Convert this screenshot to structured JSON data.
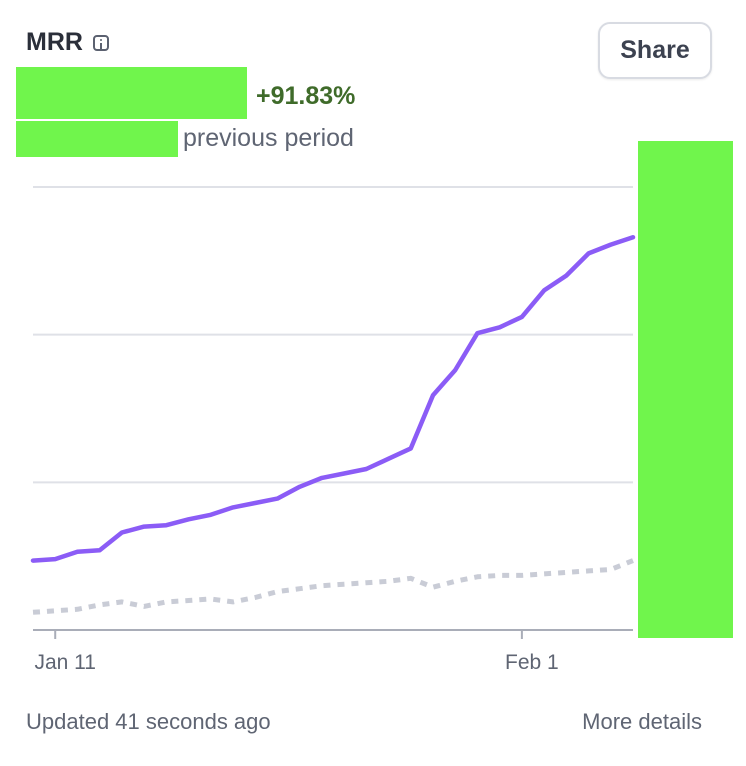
{
  "metric": {
    "title": "MRR",
    "change": "+91.83%",
    "previous_label": "previous period"
  },
  "actions": {
    "share_label": "Share",
    "more_details_label": "More details"
  },
  "footer": {
    "updated_text": "Updated 41 seconds ago"
  },
  "colors": {
    "current": "#8b5cf6",
    "previous": "#c9ccd6",
    "change_positive": "#3f6b2a",
    "redaction": "#70f54c"
  },
  "chart_data": {
    "type": "line",
    "title": "",
    "xlabel": "",
    "ylabel": "",
    "x_tick_labels": [
      {
        "label": "Jan 11",
        "index": 1
      },
      {
        "label": "Feb 1",
        "index": 22
      }
    ],
    "ylim": [
      0,
      3
    ],
    "grid": true,
    "legend": "none",
    "series": [
      {
        "style": "solid",
        "values": [
          0.47,
          0.48,
          0.53,
          0.54,
          0.66,
          0.7,
          0.71,
          0.75,
          0.78,
          0.83,
          0.86,
          0.89,
          0.97,
          1.03,
          1.06,
          1.09,
          1.16,
          1.23,
          1.59,
          1.76,
          2.01,
          2.05,
          2.12,
          2.3,
          2.4,
          2.55,
          2.61,
          2.66
        ]
      },
      {
        "style": "dashed",
        "values": [
          0.12,
          0.13,
          0.14,
          0.17,
          0.19,
          0.16,
          0.19,
          0.2,
          0.21,
          0.19,
          0.22,
          0.26,
          0.28,
          0.3,
          0.31,
          0.32,
          0.33,
          0.35,
          0.29,
          0.33,
          0.36,
          0.37,
          0.37,
          0.38,
          0.39,
          0.4,
          0.41,
          0.47
        ]
      }
    ]
  }
}
